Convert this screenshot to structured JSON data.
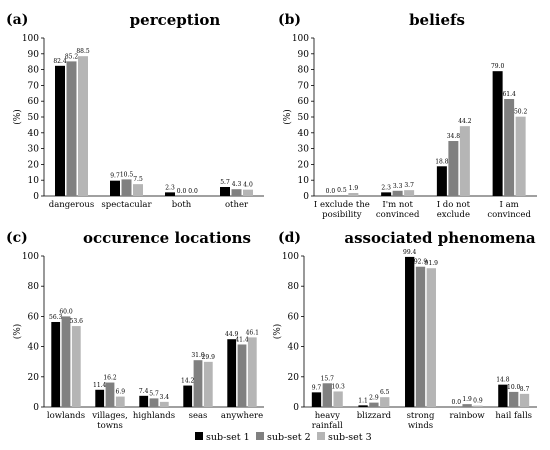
{
  "legend": {
    "items": [
      {
        "label": "sub-set 1",
        "color": "#000000"
      },
      {
        "label": "sub-set 2",
        "color": "#808080"
      },
      {
        "label": "sub-set 3",
        "color": "#b5b5b5"
      }
    ]
  },
  "chart_data": [
    {
      "type": "bar",
      "letter": "(a)",
      "title": "perception",
      "ylabel": "(%)",
      "ylim": [
        0,
        100
      ],
      "yticks": [
        0,
        10,
        20,
        30,
        40,
        50,
        60,
        70,
        80,
        90,
        100
      ],
      "categories": [
        [
          "dangerous"
        ],
        [
          "spectacular"
        ],
        [
          "both"
        ],
        [
          "other"
        ]
      ],
      "series": [
        {
          "name": "sub-set 1",
          "values": [
            82.4,
            9.7,
            2.3,
            5.7
          ]
        },
        {
          "name": "sub-set 2",
          "values": [
            85.2,
            10.5,
            0.0,
            4.3
          ]
        },
        {
          "name": "sub-set 3",
          "values": [
            88.5,
            7.5,
            0.0,
            4.0
          ]
        }
      ],
      "data_labels": [
        [
          "82.4",
          "85.2",
          "88.5"
        ],
        [
          "9.7",
          "10.5",
          "7.5"
        ],
        [
          "2.3",
          "0.0",
          "0.0"
        ],
        [
          "5.7",
          "4.3",
          "4.0"
        ]
      ]
    },
    {
      "type": "bar",
      "letter": "(b)",
      "title": "beliefs",
      "ylabel": "(%)",
      "ylim": [
        0,
        100
      ],
      "yticks": [
        0,
        10,
        20,
        30,
        40,
        50,
        60,
        70,
        80,
        90,
        100
      ],
      "categories": [
        [
          "I exclude the",
          "posibility"
        ],
        [
          "I'm not",
          "convinced"
        ],
        [
          "I do not",
          "exclude"
        ],
        [
          "I am",
          "convinced"
        ]
      ],
      "series": [
        {
          "name": "sub-set 1",
          "values": [
            0.0,
            2.3,
            18.8,
            79.0
          ]
        },
        {
          "name": "sub-set 2",
          "values": [
            0.5,
            3.3,
            34.8,
            61.4
          ]
        },
        {
          "name": "sub-set 3",
          "values": [
            1.9,
            3.7,
            44.2,
            50.2
          ]
        }
      ],
      "data_labels": [
        [
          "0.0",
          "0.5",
          "1.9"
        ],
        [
          "2.3",
          "3.3",
          "3.7"
        ],
        [
          "18.8",
          "34.8",
          "44.2"
        ],
        [
          "79.0",
          "61.4",
          "50.2"
        ]
      ]
    },
    {
      "type": "bar",
      "letter": "(c)",
      "title": "occurence locations",
      "ylabel": "(%)",
      "ylim": [
        0,
        100
      ],
      "yticks": [
        0,
        20,
        40,
        60,
        80,
        100
      ],
      "categories": [
        [
          "lowlands"
        ],
        [
          "villages,",
          "towns"
        ],
        [
          "highlands"
        ],
        [
          "seas"
        ],
        [
          "anywhere"
        ]
      ],
      "series": [
        {
          "name": "sub-set 1",
          "values": [
            56.3,
            11.4,
            7.4,
            14.2,
            44.9
          ]
        },
        {
          "name": "sub-set 2",
          "values": [
            60.0,
            16.2,
            5.7,
            31.0,
            41.4
          ]
        },
        {
          "name": "sub-set 3",
          "values": [
            53.6,
            6.9,
            3.4,
            29.9,
            46.1
          ]
        }
      ],
      "data_labels": [
        [
          "56.3",
          "60.0",
          "53.6"
        ],
        [
          "11.4",
          "16.2",
          "6.9"
        ],
        [
          "7.4",
          "5.7",
          "3.4"
        ],
        [
          "14.2",
          "31.0",
          "29.9"
        ],
        [
          "44.9",
          "41.4",
          "46.1"
        ]
      ]
    },
    {
      "type": "bar",
      "letter": "(d)",
      "title": "associated phenomena",
      "ylabel": "(%)",
      "ylim": [
        0,
        100
      ],
      "yticks": [
        0,
        20,
        40,
        60,
        80,
        100
      ],
      "categories": [
        [
          "heavy",
          "rainfall"
        ],
        [
          "blizzard"
        ],
        [
          "strong",
          "winds"
        ],
        [
          "rainbow"
        ],
        [
          "hail falls"
        ]
      ],
      "series": [
        {
          "name": "sub-set 1",
          "values": [
            9.7,
            1.1,
            99.4,
            0.0,
            14.8
          ]
        },
        {
          "name": "sub-set 2",
          "values": [
            15.7,
            2.9,
            92.9,
            1.9,
            10.0
          ]
        },
        {
          "name": "sub-set 3",
          "values": [
            10.3,
            6.5,
            91.9,
            0.9,
            8.7
          ]
        }
      ],
      "data_labels": [
        [
          "9.7",
          "15.7",
          "10.3"
        ],
        [
          "1.1",
          "2.9",
          "6.5"
        ],
        [
          "99.4",
          "92.9",
          "91.9"
        ],
        [
          "0.0",
          "1.9",
          "0.9"
        ],
        [
          "14.8",
          "10.0",
          "8.7"
        ]
      ]
    }
  ]
}
